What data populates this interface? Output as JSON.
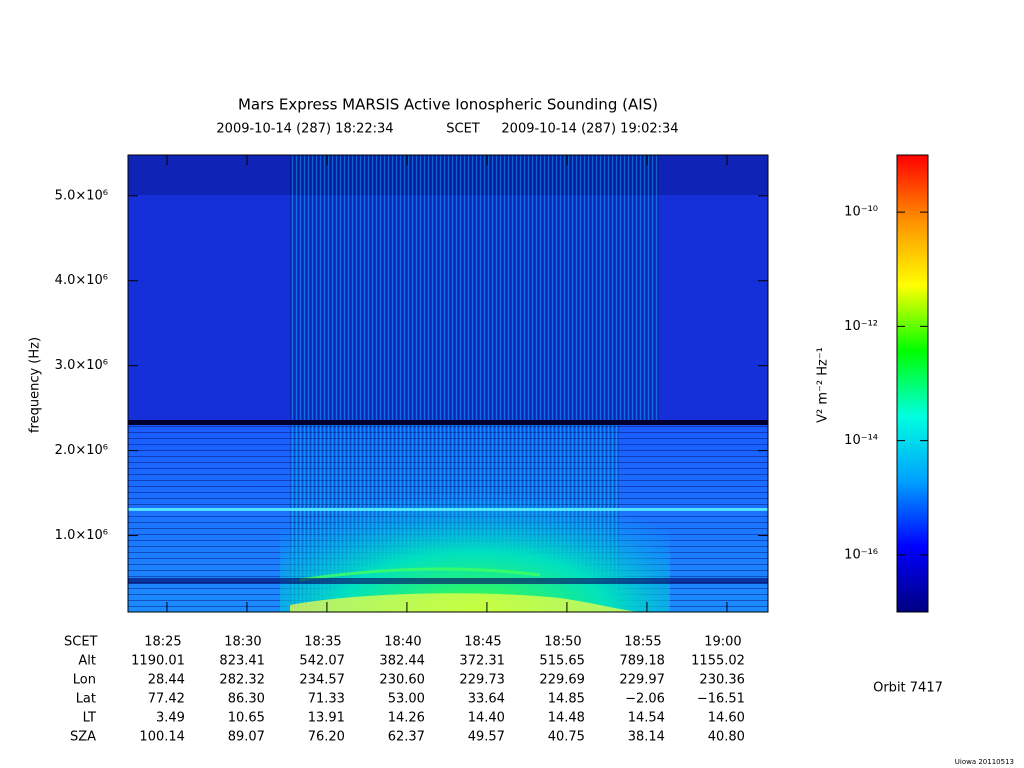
{
  "chart_data": {
    "type": "spectrogram",
    "title": "Mars Express MARSIS Active Ionospheric Sounding (AIS)",
    "subtitle": [
      "2009-10-14 (287) 18:22:34",
      "SCET",
      "2009-10-14 (287) 19:02:34"
    ],
    "ylabel": "frequency (Hz)",
    "ylim": [
      100000,
      5480000
    ],
    "yticks": [
      {
        "value": 1000000,
        "label": "1.0×10⁶"
      },
      {
        "value": 2000000,
        "label": "2.0×10⁶"
      },
      {
        "value": 3000000,
        "label": "3.0×10⁶"
      },
      {
        "value": 4000000,
        "label": "4.0×10⁶"
      },
      {
        "value": 5000000,
        "label": "5.0×10⁶"
      }
    ],
    "xlim": [
      1102.567,
      1142.567
    ],
    "xticks": [
      {
        "value": 1105,
        "label": "18:25"
      },
      {
        "value": 1110,
        "label": "18:30"
      },
      {
        "value": 1115,
        "label": "18:35"
      },
      {
        "value": 1120,
        "label": "18:40"
      },
      {
        "value": 1125,
        "label": "18:45"
      },
      {
        "value": 1130,
        "label": "18:50"
      },
      {
        "value": 1135,
        "label": "18:55"
      },
      {
        "value": 1140,
        "label": "19:00"
      }
    ],
    "colorbar": {
      "label": "V² m⁻² Hz⁻¹",
      "log": true,
      "zlim": [
        1e-17,
        1e-09
      ],
      "zticks": [
        {
          "value": 1e-10,
          "label": "10⁻¹⁰"
        },
        {
          "value": 1e-12,
          "label": "10⁻¹²"
        },
        {
          "value": 1e-14,
          "label": "10⁻¹⁴"
        },
        {
          "value": 1e-16,
          "label": "10⁻¹⁶"
        }
      ],
      "colors": [
        "#000080",
        "#0000ff",
        "#00a0ff",
        "#00ffe0",
        "#00ff00",
        "#ffff00",
        "#ff9000",
        "#ff0000"
      ]
    },
    "ephemeris_header": "SCET",
    "ephemeris": [
      {
        "name": "Alt",
        "values": [
          "1190.01",
          "823.41",
          "542.07",
          "382.44",
          "372.31",
          "515.65",
          "789.18",
          "1155.02"
        ]
      },
      {
        "name": "Lon",
        "values": [
          "28.44",
          "282.32",
          "234.57",
          "230.60",
          "229.73",
          "229.69",
          "229.97",
          "230.36"
        ]
      },
      {
        "name": "Lat",
        "values": [
          "77.42",
          "86.30",
          "71.33",
          "53.00",
          "33.64",
          "14.85",
          "−2.06",
          "−16.51"
        ]
      },
      {
        "name": "LT",
        "values": [
          "3.49",
          "10.65",
          "13.91",
          "14.26",
          "14.40",
          "14.48",
          "14.54",
          "14.60"
        ]
      },
      {
        "name": "SZA",
        "values": [
          "100.14",
          "89.07",
          "76.20",
          "62.37",
          "49.57",
          "40.75",
          "38.14",
          "40.80"
        ]
      }
    ],
    "orbit": "Orbit 7417",
    "footer": "Uiowa 20110513"
  }
}
